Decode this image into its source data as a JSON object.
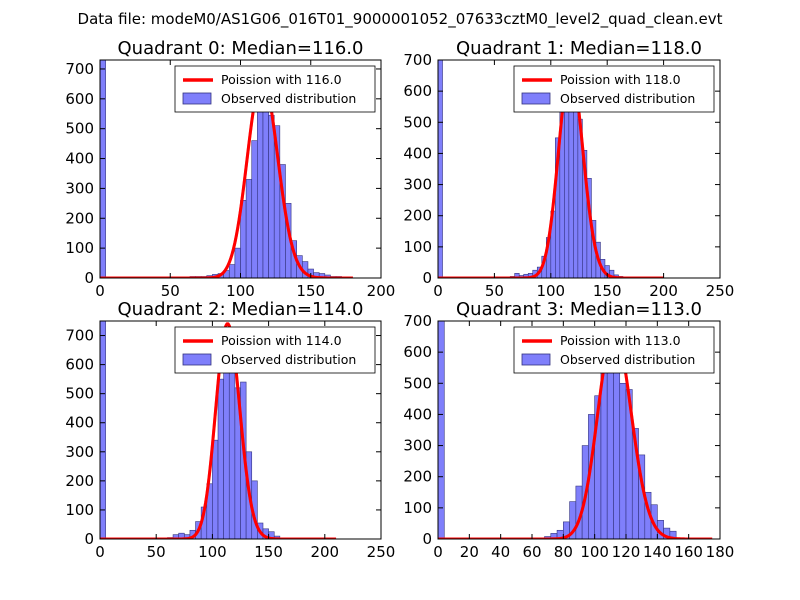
{
  "figure": {
    "suptitle": "Data file: modeM0/AS1G06_016T01_9000001052_07633cztM0_level2_quad_clean.evt",
    "colors": {
      "bar_fill": "#7f7ffb",
      "bar_edge": "#33337f",
      "fit_line": "#ff0000",
      "text": "#000000",
      "axes": "#000000"
    }
  },
  "chart_data": [
    {
      "type": "bar",
      "title": "Quadrant 0: Median=116.0",
      "xlim": [
        0,
        200
      ],
      "ylim": [
        0,
        730
      ],
      "xticks": [
        0,
        50,
        100,
        150,
        200
      ],
      "yticks": [
        0,
        100,
        200,
        300,
        400,
        500,
        600,
        700
      ],
      "legend": {
        "placement": "top-right",
        "line_label": "Poission with 116.0",
        "bar_label": "Observed distribution"
      },
      "bin_width": 4,
      "bins_x": [
        0,
        64,
        68,
        72,
        76,
        80,
        84,
        88,
        92,
        96,
        100,
        104,
        108,
        112,
        116,
        120,
        124,
        128,
        132,
        136,
        140,
        144,
        148,
        152,
        156,
        160,
        164,
        168
      ],
      "counts": [
        730,
        5,
        5,
        5,
        8,
        12,
        15,
        25,
        45,
        100,
        260,
        330,
        460,
        570,
        600,
        545,
        510,
        380,
        250,
        125,
        75,
        55,
        30,
        18,
        15,
        10,
        5,
        5
      ],
      "poisson": {
        "mean": 116.0,
        "xmin": 0,
        "xmax": 180,
        "peak": 670
      }
    },
    {
      "type": "bar",
      "title": "Quadrant 1: Median=118.0",
      "xlim": [
        0,
        250
      ],
      "ylim": [
        0,
        700
      ],
      "xticks": [
        0,
        50,
        100,
        150,
        200,
        250
      ],
      "yticks": [
        0,
        100,
        200,
        300,
        400,
        500,
        600,
        700
      ],
      "legend": {
        "placement": "top-right",
        "line_label": "Poission with 118.0",
        "bar_label": "Observed distribution"
      },
      "bin_width": 4,
      "bins_x": [
        0,
        64,
        68,
        72,
        76,
        80,
        84,
        88,
        92,
        96,
        100,
        104,
        108,
        112,
        116,
        120,
        124,
        128,
        132,
        136,
        140,
        144,
        148,
        152,
        156,
        160
      ],
      "counts": [
        700,
        5,
        15,
        8,
        12,
        15,
        25,
        35,
        70,
        130,
        215,
        450,
        560,
        660,
        640,
        590,
        510,
        410,
        320,
        185,
        115,
        60,
        40,
        25,
        10,
        5
      ],
      "poisson": {
        "mean": 118.0,
        "xmin": 0,
        "xmax": 200,
        "peak": 670
      }
    },
    {
      "type": "bar",
      "title": "Quadrant 2: Median=114.0",
      "xlim": [
        0,
        250
      ],
      "ylim": [
        0,
        750
      ],
      "xticks": [
        0,
        50,
        100,
        150,
        200,
        250
      ],
      "yticks": [
        0,
        100,
        200,
        300,
        400,
        500,
        600,
        700
      ],
      "legend": {
        "placement": "top-right",
        "line_label": "Poission with 114.0",
        "bar_label": "Observed distribution"
      },
      "bin_width": 5,
      "bins_x": [
        0,
        60,
        65,
        70,
        75,
        80,
        85,
        90,
        95,
        100,
        105,
        110,
        115,
        120,
        125,
        130,
        135,
        140,
        145,
        150,
        155
      ],
      "counts": [
        750,
        5,
        15,
        20,
        15,
        30,
        60,
        110,
        190,
        340,
        550,
        690,
        720,
        520,
        540,
        300,
        200,
        55,
        35,
        25,
        10
      ],
      "poisson": {
        "mean": 114.0,
        "xmin": 0,
        "xmax": 210,
        "peak": 740
      }
    },
    {
      "type": "bar",
      "title": "Quadrant 3: Median=113.0",
      "xlim": [
        0,
        180
      ],
      "ylim": [
        0,
        700
      ],
      "xticks": [
        0,
        20,
        40,
        60,
        80,
        100,
        120,
        140,
        160,
        180
      ],
      "yticks": [
        0,
        100,
        200,
        300,
        400,
        500,
        600,
        700
      ],
      "legend": {
        "placement": "top-right",
        "line_label": "Poission with 113.0",
        "bar_label": "Observed distribution"
      },
      "bin_width": 4,
      "bins_x": [
        0,
        68,
        72,
        76,
        80,
        84,
        88,
        92,
        96,
        100,
        104,
        108,
        112,
        116,
        120,
        124,
        128,
        132,
        136,
        140,
        144,
        148
      ],
      "counts": [
        700,
        8,
        18,
        28,
        55,
        120,
        170,
        300,
        400,
        460,
        580,
        650,
        625,
        500,
        480,
        355,
        270,
        150,
        110,
        60,
        35,
        25
      ],
      "poisson": {
        "mean": 113.0,
        "xmin": 0,
        "xmax": 175,
        "peak": 670
      }
    }
  ]
}
